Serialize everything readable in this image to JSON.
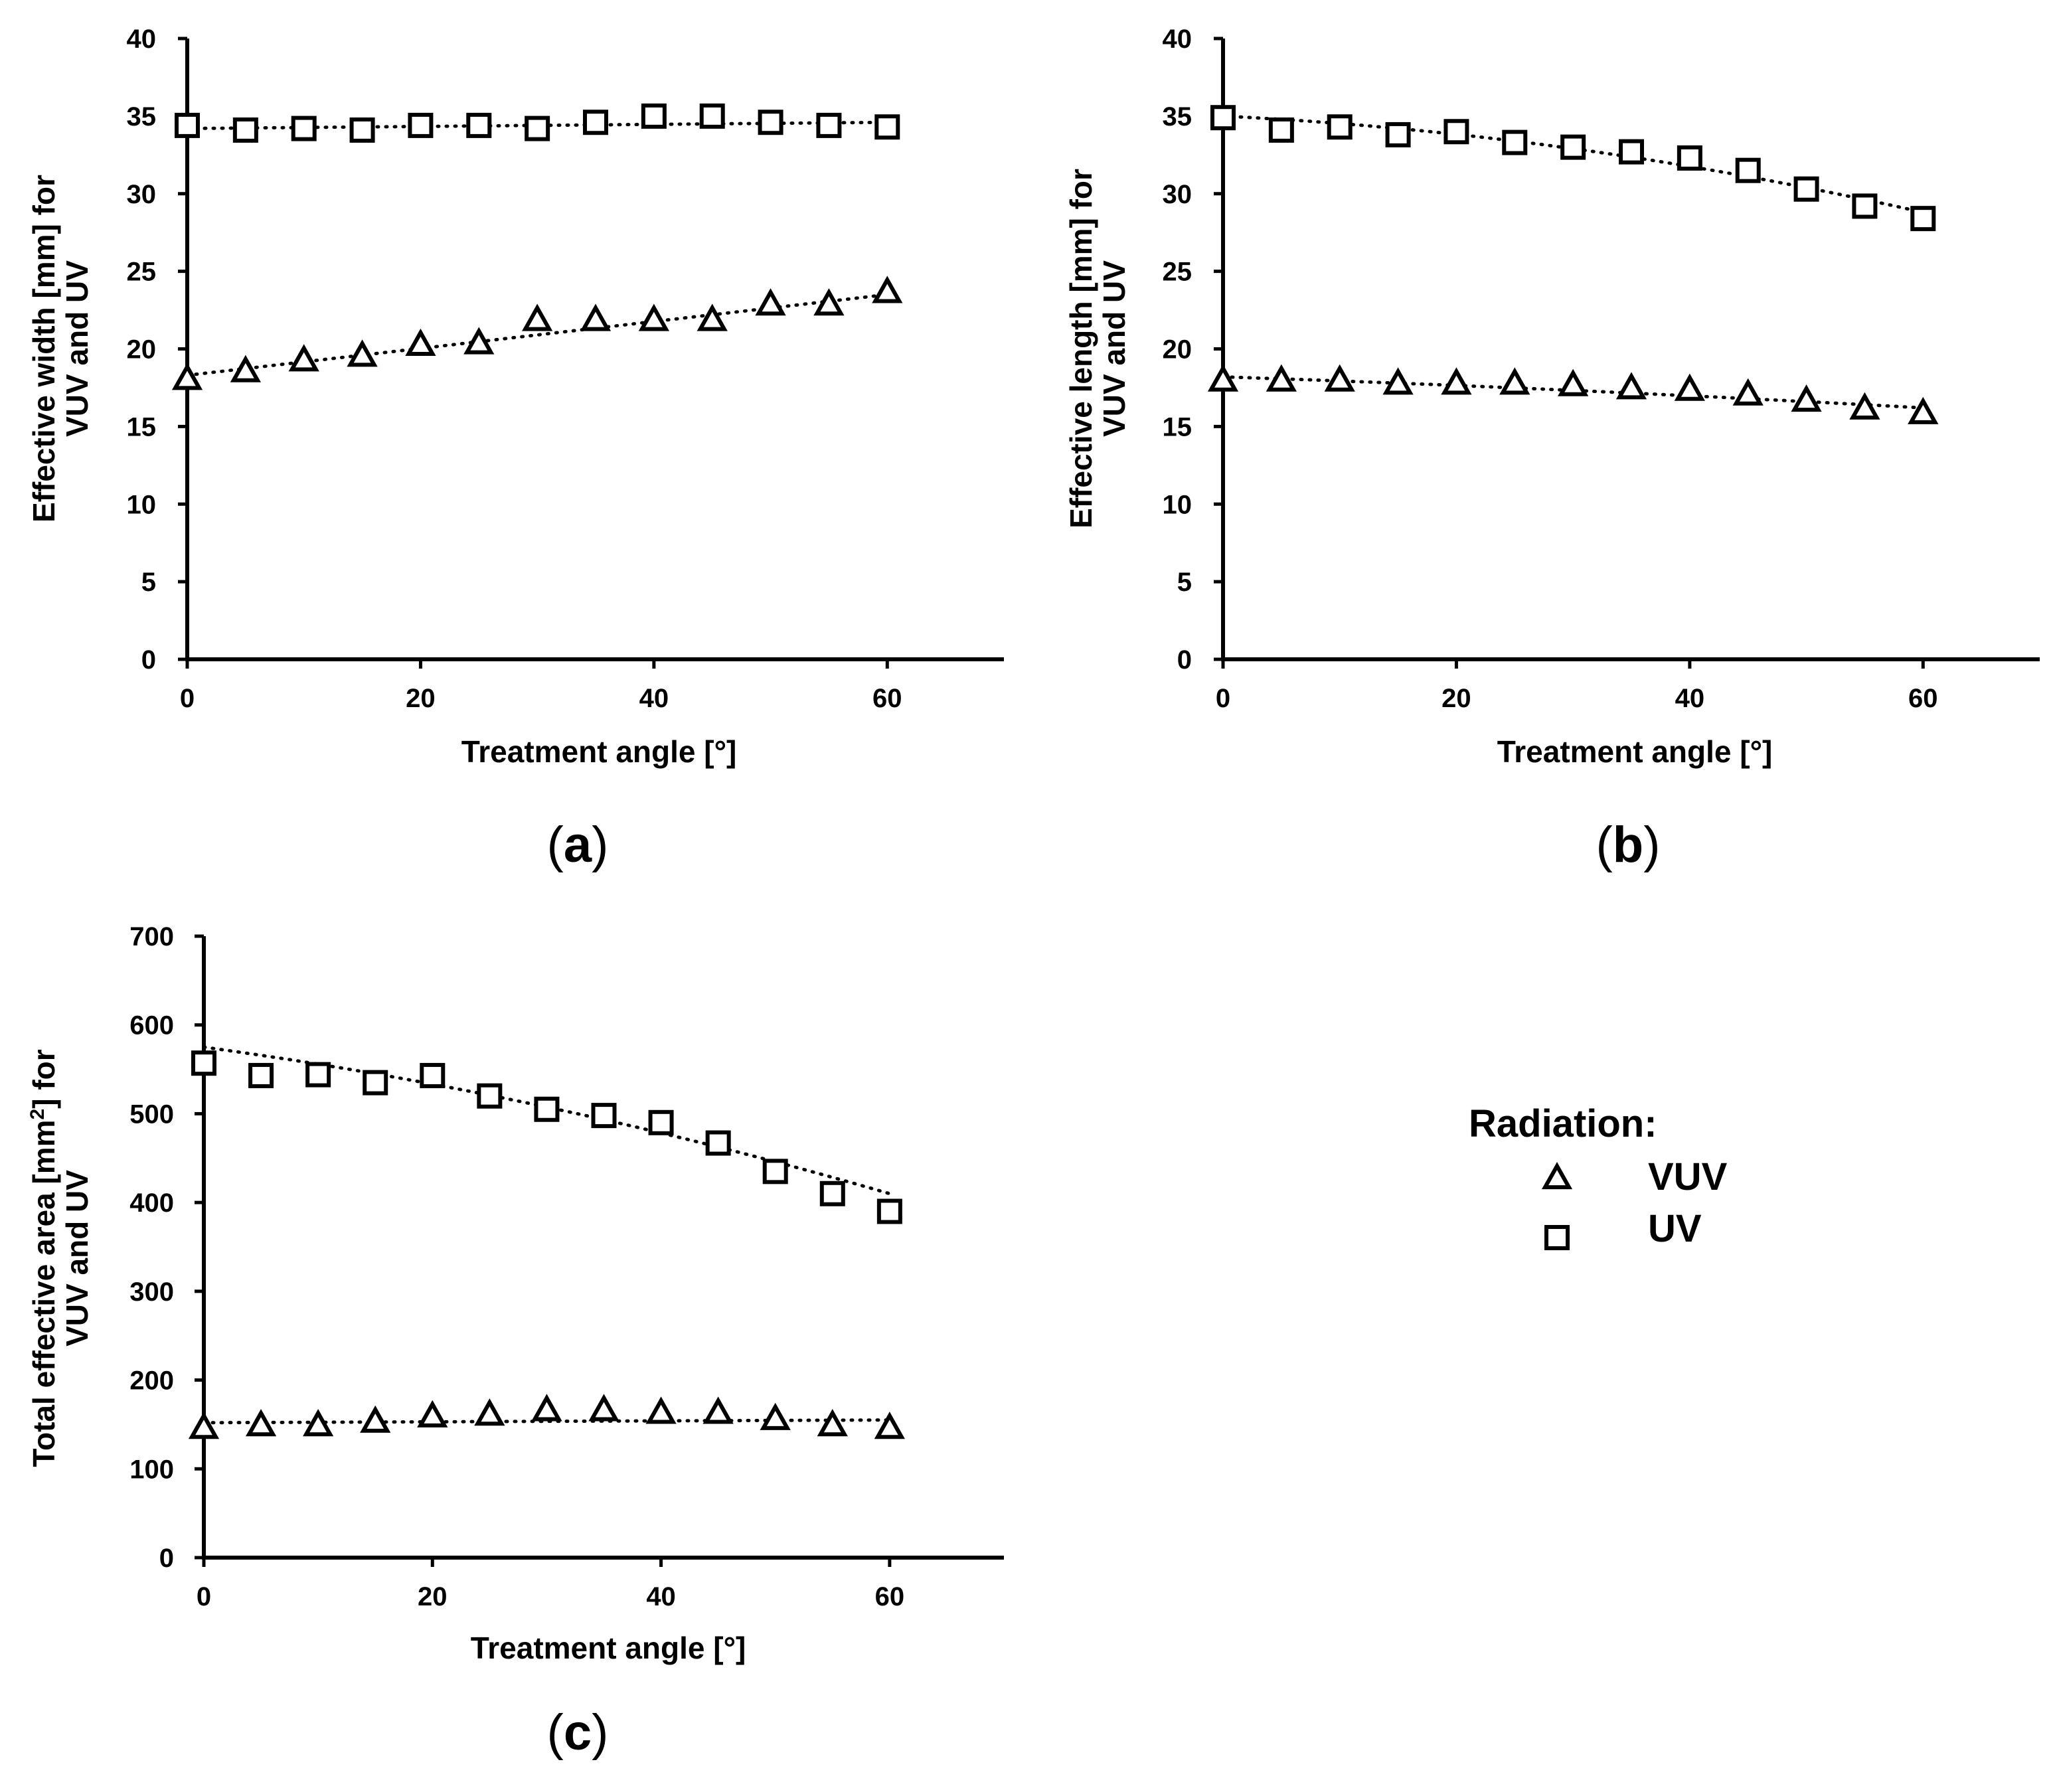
{
  "chart_data": [
    {
      "id": "a",
      "type": "scatter",
      "panel_label": "a",
      "xlabel": "Treatment angle [°]",
      "ylabel_line1": "Effective width [mm] for",
      "ylabel_line2": "VUV and UV",
      "xlim": [
        0,
        70
      ],
      "ylim": [
        0,
        40
      ],
      "xticks": [
        0,
        20,
        40,
        60
      ],
      "yticks": [
        0,
        5,
        10,
        15,
        20,
        25,
        30,
        35,
        40
      ],
      "x": [
        0,
        5,
        10,
        15,
        20,
        25,
        30,
        35,
        40,
        45,
        50,
        55,
        60
      ],
      "series": [
        {
          "name": "VUV",
          "marker": "triangle",
          "values": [
            18,
            18.5,
            19.2,
            19.5,
            20.2,
            20.3,
            21.8,
            21.8,
            21.8,
            21.8,
            22.8,
            22.8,
            23.6
          ],
          "trend": [
            18.3,
            23.5
          ]
        },
        {
          "name": "UV",
          "marker": "square",
          "values": [
            34.4,
            34.1,
            34.2,
            34.1,
            34.4,
            34.4,
            34.2,
            34.6,
            35.0,
            35.0,
            34.6,
            34.4,
            34.3
          ],
          "trend": [
            34.2,
            34.6
          ]
        }
      ]
    },
    {
      "id": "b",
      "type": "scatter",
      "panel_label": "b",
      "xlabel": "Treatment angle [°]",
      "ylabel_line1": "Effective length [mm] for",
      "ylabel_line2": "VUV and UV",
      "xlim": [
        0,
        70
      ],
      "ylim": [
        0,
        40
      ],
      "xticks": [
        0,
        20,
        40,
        60
      ],
      "yticks": [
        0,
        5,
        10,
        15,
        20,
        25,
        30,
        35,
        40
      ],
      "x": [
        0,
        5,
        10,
        15,
        20,
        25,
        30,
        35,
        40,
        45,
        50,
        55,
        60
      ],
      "series": [
        {
          "name": "VUV",
          "marker": "triangle",
          "values": [
            17.9,
            17.9,
            17.9,
            17.7,
            17.7,
            17.7,
            17.6,
            17.4,
            17.3,
            17.0,
            16.6,
            16.1,
            15.8
          ],
          "trend": [
            18.2,
            16.2
          ],
          "curve": 0.5
        },
        {
          "name": "UV",
          "marker": "square",
          "values": [
            34.9,
            34.1,
            34.3,
            33.8,
            34.0,
            33.3,
            33.0,
            32.7,
            32.3,
            31.5,
            30.3,
            29.2,
            28.4
          ],
          "trend": [
            35.0,
            28.8
          ],
          "curve": 4.0
        }
      ]
    },
    {
      "id": "c",
      "type": "scatter",
      "panel_label": "c",
      "xlabel": "Treatment angle [°]",
      "ylabel_line1": "Total effective area [mm",
      "ylabel_sup": "2",
      "ylabel_line1_end": "] for",
      "ylabel_line2": "VUV and UV",
      "xlim": [
        0,
        70
      ],
      "ylim": [
        0,
        700
      ],
      "xticks": [
        0,
        20,
        40,
        60
      ],
      "yticks": [
        0,
        100,
        200,
        300,
        400,
        500,
        600,
        700
      ],
      "x": [
        0,
        5,
        10,
        15,
        20,
        25,
        30,
        35,
        40,
        45,
        50,
        55,
        60
      ],
      "series": [
        {
          "name": "VUV",
          "marker": "triangle",
          "values": [
            145,
            148,
            148,
            152,
            158,
            160,
            165,
            165,
            162,
            162,
            155,
            148,
            145
          ],
          "trend": [
            152,
            155
          ],
          "curve": 0
        },
        {
          "name": "UV",
          "marker": "square",
          "values": [
            557,
            543,
            544,
            535,
            543,
            520,
            505,
            498,
            490,
            467,
            435,
            410,
            390
          ],
          "trend": [
            575,
            410
          ],
          "curve": 60
        }
      ]
    }
  ],
  "legend": {
    "title": "Radiation:",
    "items": [
      {
        "label": "VUV",
        "marker": "triangle"
      },
      {
        "label": "UV",
        "marker": "square"
      }
    ]
  }
}
